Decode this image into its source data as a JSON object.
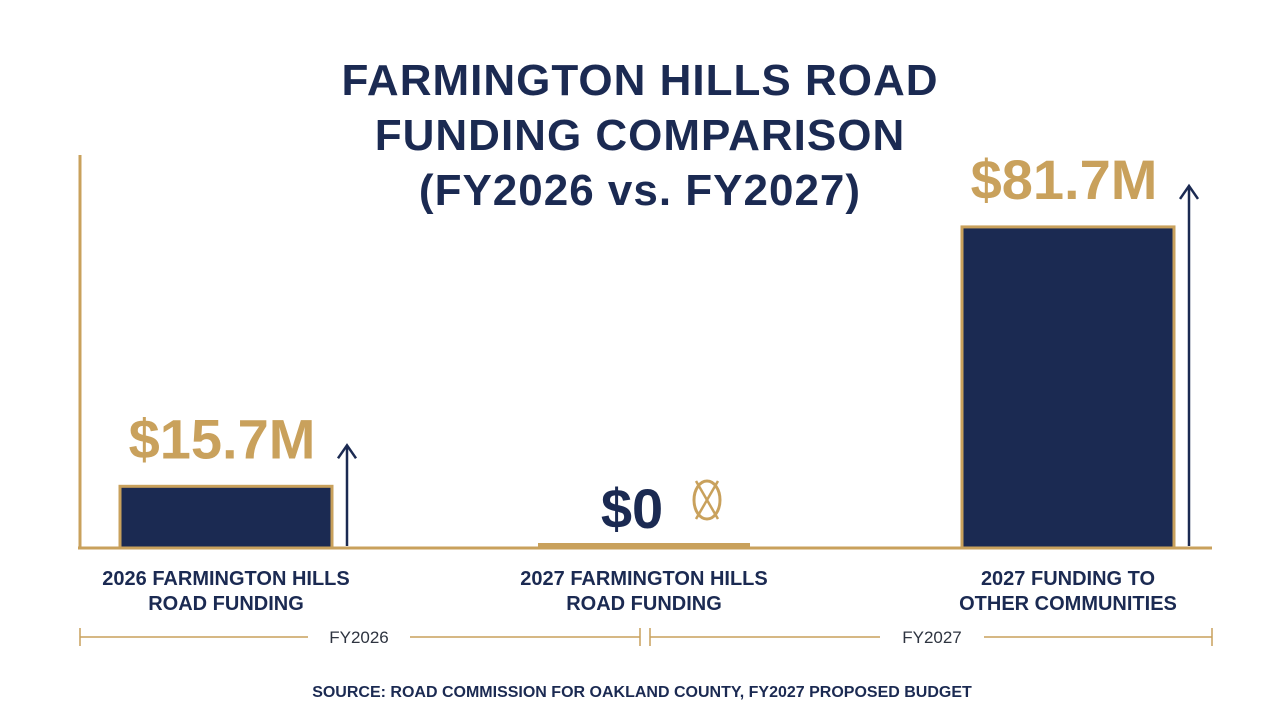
{
  "colors": {
    "navy": "#1b2a52",
    "gold": "#c9a15c",
    "text": "#1b2a52",
    "muted": "#2e3440"
  },
  "chart_data": {
    "type": "bar",
    "title_lines": [
      "FARMINGTON HILLS ROAD",
      "FUNDING COMPARISON",
      "(FY2026 vs. FY2027)"
    ],
    "categories": [
      [
        "2026 FARMINGTON HILLS",
        "ROAD FUNDING"
      ],
      [
        "2027 FARMINGTON HILLS",
        "ROAD FUNDING"
      ],
      [
        "2027 FUNDING TO",
        "OTHER COMMUNITIES"
      ]
    ],
    "values": [
      15.7,
      0,
      81.7
    ],
    "value_labels": [
      "$15.7M",
      "$0",
      "$81.7M"
    ],
    "units": "$M",
    "ylim": [
      0,
      100
    ],
    "groups": [
      {
        "label": "FY2026",
        "categories": [
          0
        ]
      },
      {
        "label": "FY2027",
        "categories": [
          1,
          2
        ]
      }
    ],
    "annotations": {
      "up_arrow_on": [
        0,
        2
      ],
      "crossed_out_mark_on": 1
    },
    "source": "SOURCE: ROAD COMMISSION FOR OAKLAND COUNTY, FY2027 PROPOSED BUDGET"
  }
}
